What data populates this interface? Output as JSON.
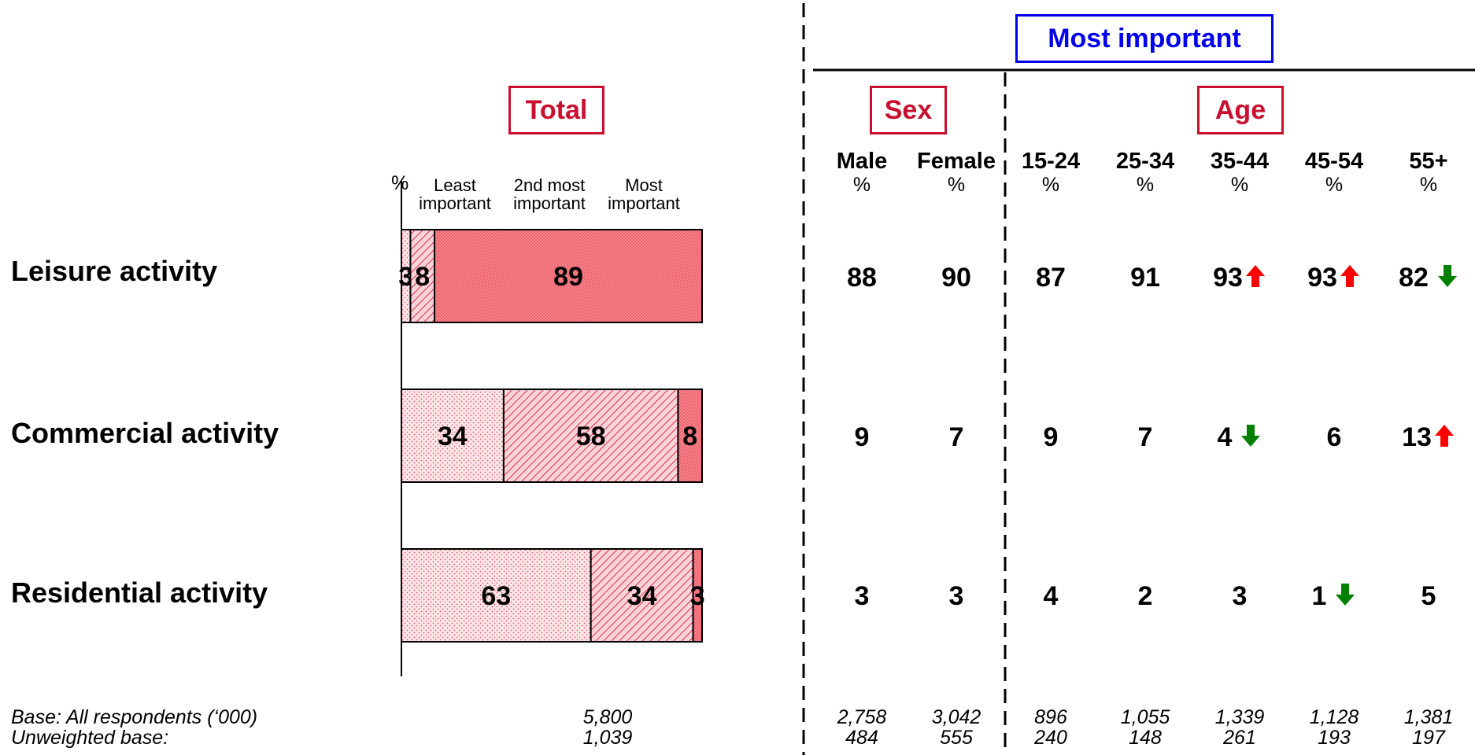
{
  "headers": {
    "most_important": "Most important",
    "total": "Total",
    "sex": "Sex",
    "age": "Age"
  },
  "legend": {
    "pct": "%",
    "least": "Least\nimportant",
    "second": "2nd most\nimportant",
    "most": "Most\nimportant"
  },
  "rows": [
    {
      "label": "Leisure activity"
    },
    {
      "label": "Commercial activity"
    },
    {
      "label": "Residential activity"
    }
  ],
  "columns": [
    {
      "name": "Male",
      "pct": "%"
    },
    {
      "name": "Female",
      "pct": "%"
    },
    {
      "name": "15-24",
      "pct": "%"
    },
    {
      "name": "25-34",
      "pct": "%"
    },
    {
      "name": "35-44",
      "pct": "%"
    },
    {
      "name": "45-54",
      "pct": "%"
    },
    {
      "name": "55+",
      "pct": "%"
    }
  ],
  "table_values": [
    [
      "88",
      "90",
      "87",
      "91",
      "93",
      "93",
      "82"
    ],
    [
      "9",
      "7",
      "9",
      "7",
      "4",
      "6",
      "13"
    ],
    [
      "3",
      "3",
      "4",
      "2",
      "3",
      "1",
      "5"
    ]
  ],
  "significance": [
    [
      "",
      "",
      "",
      "",
      "up",
      "up",
      "down"
    ],
    [
      "",
      "",
      "",
      "",
      "down",
      "",
      "up"
    ],
    [
      "",
      "",
      "",
      "",
      "",
      "down",
      ""
    ]
  ],
  "arrow_colors": {
    "up": "#ff0000",
    "down": "#008000"
  },
  "base": {
    "label1": "Base: All respondents (‘000)",
    "label2": "Unweighted base:",
    "total1": "5,800",
    "total2": "1,039",
    "cols1": [
      "2,758",
      "3,042",
      "896",
      "1,055",
      "1,339",
      "1,128",
      "1,381"
    ],
    "cols2": [
      "484",
      "555",
      "240",
      "148",
      "261",
      "193",
      "197"
    ]
  },
  "chart_data": {
    "type": "bar",
    "stacked": true,
    "orientation": "horizontal",
    "categories": [
      "Leisure activity",
      "Commercial activity",
      "Residential activity"
    ],
    "series": [
      {
        "name": "Least important",
        "values": [
          3,
          34,
          63
        ]
      },
      {
        "name": "2nd most important",
        "values": [
          8,
          58,
          34
        ]
      },
      {
        "name": "Most important",
        "values": [
          89,
          8,
          3
        ]
      }
    ],
    "xlim": [
      0,
      100
    ],
    "title": "Total"
  }
}
